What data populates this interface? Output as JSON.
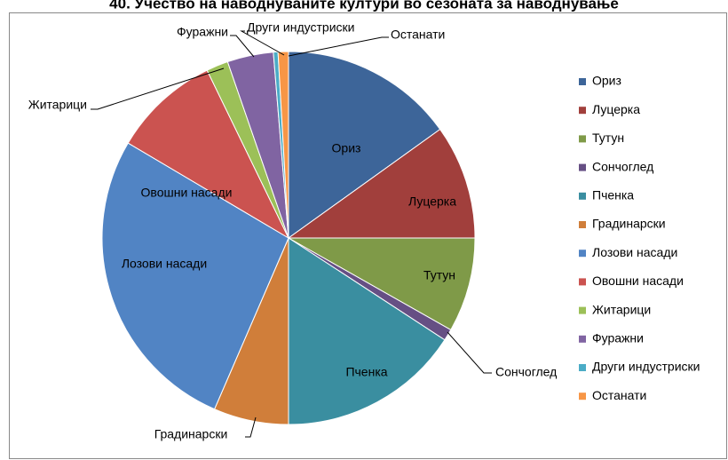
{
  "chart_data": {
    "type": "pie",
    "title": "40. Учество на наводнуваните култури во сезоната за наводнување",
    "categories": [
      "Ориз",
      "Луцерка",
      "Тутун",
      "Сончоглед",
      "Пченка",
      "Градинарски",
      "Лозови насади",
      "Овошни насади",
      "Житарици",
      "Фуражни",
      "Други индустриски",
      "Останати"
    ],
    "values": [
      15.1,
      9.9,
      8.2,
      1.0,
      15.8,
      6.5,
      27.0,
      9.3,
      1.9,
      4.0,
      0.4,
      0.9
    ],
    "colors": [
      "#3d6599",
      "#a13f3c",
      "#7f9a48",
      "#664f84",
      "#3a8ea0",
      "#d07e3a",
      "#5184c4",
      "#cb5350",
      "#9cc058",
      "#8064a2",
      "#4bacc6",
      "#f79646"
    ],
    "legend": "right"
  }
}
